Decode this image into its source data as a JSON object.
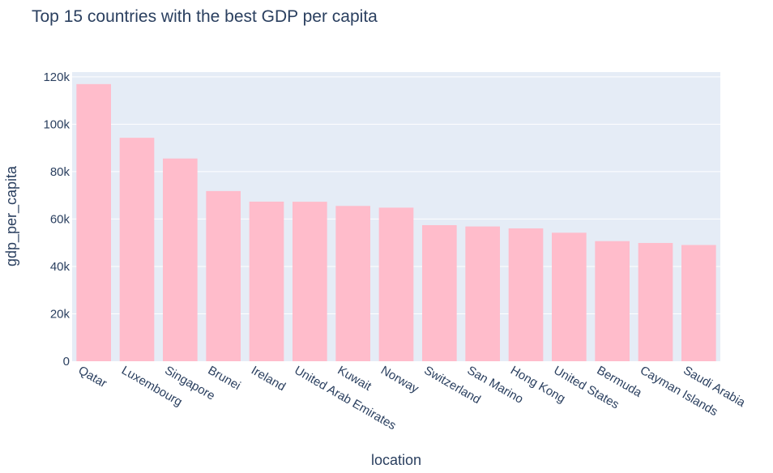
{
  "chart_data": {
    "type": "bar",
    "title": "Top 15 countries with the best GDP per capita",
    "xlabel": "location",
    "ylabel": "gdp_per_capita",
    "categories": [
      "Qatar",
      "Luxembourg",
      "Singapore",
      "Brunei",
      "Ireland",
      "United Arab Emirates",
      "Kuwait",
      "Norway",
      "Switzerland",
      "San Marino",
      "Hong Kong",
      "United States",
      "Bermuda",
      "Cayman Islands",
      "Saudi Arabia"
    ],
    "values": [
      116936,
      94278,
      85535,
      71809,
      67335,
      67293,
      65531,
      64800,
      57410,
      56861,
      56055,
      54225,
      50669,
      49903,
      49045
    ],
    "ylim": [
      0,
      122000
    ],
    "yticks": [
      0,
      20000,
      40000,
      60000,
      80000,
      100000,
      120000
    ],
    "ytick_labels": [
      "0",
      "20k",
      "40k",
      "60k",
      "80k",
      "100k",
      "120k"
    ],
    "grid": true,
    "colors": {
      "bar": "#ffbccb",
      "plot_bg": "#e5ecf6",
      "grid": "#ffffff",
      "text": "#2a3f5f"
    }
  }
}
